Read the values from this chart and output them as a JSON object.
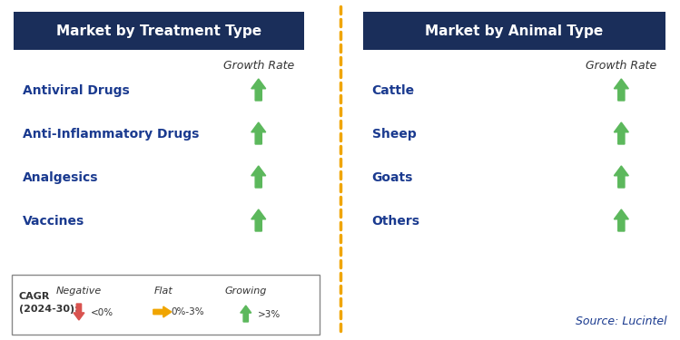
{
  "left_title": "Market by Treatment Type",
  "right_title": "Market by Animal Type",
  "left_items": [
    "Antiviral Drugs",
    "Anti-Inflammatory Drugs",
    "Analgesics",
    "Vaccines"
  ],
  "right_items": [
    "Cattle",
    "Sheep",
    "Goats",
    "Others"
  ],
  "header_bg_color": "#1a2e5a",
  "header_text_color": "#ffffff",
  "item_text_color": "#1a3a8f",
  "growth_rate_label": "Growth Rate",
  "arrow_up_color": "#5cb85c",
  "arrow_down_color": "#d9534f",
  "arrow_flat_color": "#f0a500",
  "legend_negative_label": "Negative",
  "legend_flat_label": "Flat",
  "legend_growing_label": "Growing",
  "legend_negative_range": "<0%",
  "legend_flat_range": "0%-3%",
  "legend_growing_range": ">3%",
  "cagr_label": "CAGR\n(2024-30):",
  "source_label": "Source: Lucintel",
  "divider_color": "#f0a500",
  "bg_color": "#ffffff"
}
